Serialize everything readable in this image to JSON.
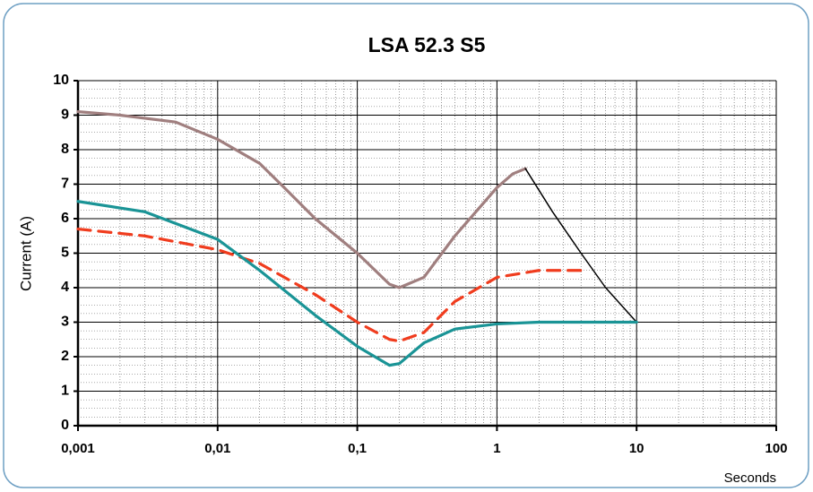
{
  "chart_data": {
    "type": "line",
    "title": "LSA 52.3 S5",
    "ylabel": "Current (A)",
    "xlabel": "Seconds",
    "xscale": "log",
    "xlim": [
      0.001,
      100
    ],
    "ylim": [
      0,
      10
    ],
    "xticks": [
      {
        "value": 0.001,
        "label": "0,001"
      },
      {
        "value": 0.01,
        "label": "0,01"
      },
      {
        "value": 0.1,
        "label": "0,1"
      },
      1,
      10,
      100
    ],
    "yticks": [
      0,
      1,
      2,
      3,
      4,
      5,
      6,
      7,
      8,
      9,
      10
    ],
    "grid": true,
    "minor_grid": true,
    "series": [
      {
        "color": "#a07f7f",
        "style": "solid",
        "x": [
          0.001,
          0.002,
          0.005,
          0.01,
          0.02,
          0.03,
          0.05,
          0.1,
          0.17,
          0.2,
          0.3,
          0.5,
          1,
          1.3,
          1.6
        ],
        "values": [
          9.1,
          9.0,
          8.8,
          8.3,
          7.6,
          6.9,
          6.0,
          5.0,
          4.1,
          4.0,
          4.3,
          5.5,
          6.9,
          7.3,
          7.45
        ]
      },
      {
        "color": "#000000",
        "style": "solid",
        "x": [
          1.6,
          2.5,
          4,
          6,
          10
        ],
        "values": [
          7.45,
          6.2,
          5.0,
          4.0,
          3.0
        ]
      },
      {
        "color": "#f03c1e",
        "style": "dashed",
        "x": [
          0.001,
          0.003,
          0.01,
          0.02,
          0.05,
          0.1,
          0.17,
          0.2,
          0.3,
          0.5,
          1,
          2,
          4.5
        ],
        "values": [
          5.7,
          5.5,
          5.1,
          4.7,
          3.8,
          3.0,
          2.5,
          2.45,
          2.7,
          3.6,
          4.3,
          4.5,
          4.5
        ]
      },
      {
        "color": "#1a9496",
        "style": "solid",
        "x": [
          0.001,
          0.003,
          0.01,
          0.02,
          0.05,
          0.1,
          0.17,
          0.2,
          0.3,
          0.5,
          1,
          2,
          10
        ],
        "values": [
          6.5,
          6.2,
          5.4,
          4.5,
          3.2,
          2.3,
          1.75,
          1.8,
          2.4,
          2.8,
          2.95,
          3.0,
          3.0
        ]
      }
    ]
  }
}
